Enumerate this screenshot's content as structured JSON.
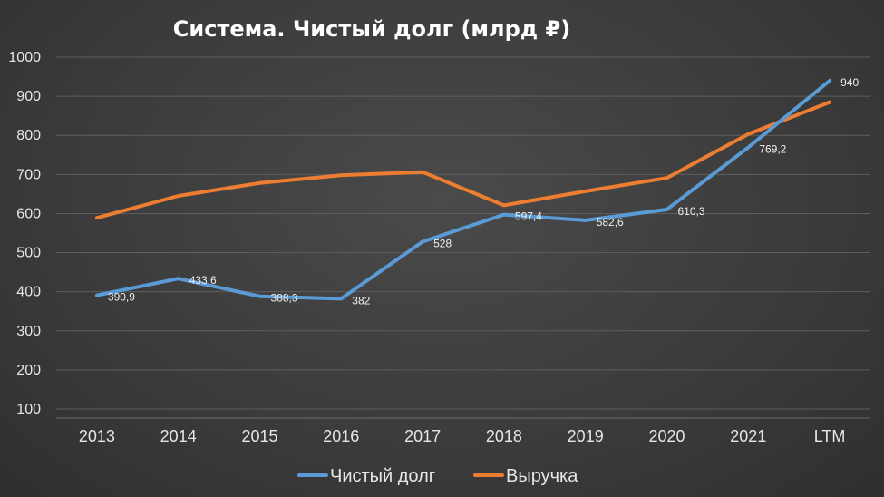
{
  "chart_data": {
    "type": "line",
    "title": "Система. Чистый долг (млрд ₽)",
    "categories": [
      "2013",
      "2014",
      "2015",
      "2016",
      "2017",
      "2018",
      "2019",
      "2020",
      "2021",
      "LTM"
    ],
    "ylim": [
      100,
      1000
    ],
    "yticks": [
      100,
      200,
      300,
      400,
      500,
      600,
      700,
      800,
      900,
      1000
    ],
    "grid": true,
    "legend": "bottom",
    "series": [
      {
        "name": "Чистый долг",
        "color": "#5b9bd5",
        "values": [
          390.9,
          433.6,
          388.3,
          382,
          528,
          597.4,
          582.6,
          610.3,
          769.2,
          940
        ],
        "labels": [
          "390,9",
          "433,6",
          "388,3",
          "382",
          "528",
          "597,4",
          "582,6",
          "610,3",
          "769,2",
          "940"
        ]
      },
      {
        "name": "Выручка",
        "color": "#ed7d31",
        "values": [
          589,
          645,
          678,
          698,
          706,
          621,
          657,
          691,
          803,
          885
        ]
      }
    ]
  }
}
